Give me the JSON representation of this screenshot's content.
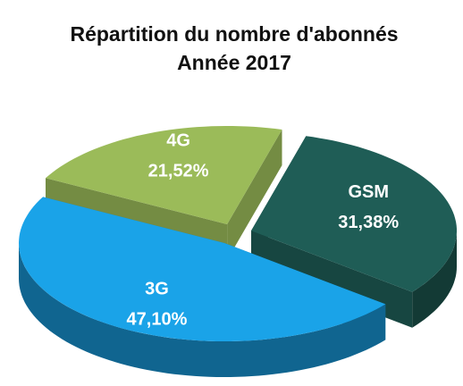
{
  "chart_data": {
    "type": "pie3d",
    "title": "Répartition du nombre d'abonnés",
    "subtitle": "Année 2017",
    "categories": [
      "4G",
      "GSM",
      "3G"
    ],
    "values": [
      21.52,
      31.38,
      47.1
    ],
    "value_labels": [
      "21,52%",
      "31,38%",
      "47,10%"
    ],
    "colors": [
      "#9bbb59",
      "#1f5d56",
      "#1aa3e8"
    ]
  }
}
